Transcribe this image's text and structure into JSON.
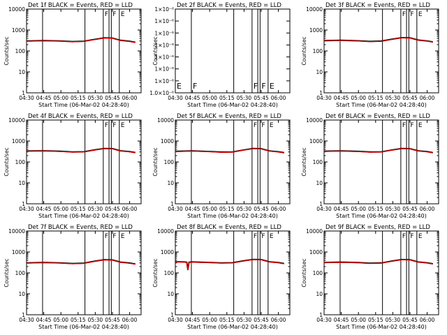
{
  "chart_data": [
    {
      "type": "line",
      "title": "Det 1f BLACK = Events, RED = LLD",
      "xlabel": "Start Time (06-Mar-02 04:28:40)",
      "ylabel": "Counts/sec",
      "yscale": "log",
      "ylim": [
        1,
        10000
      ],
      "ytick_labels": [
        "1",
        "10",
        "100",
        "1000",
        "10000"
      ],
      "xlim": [
        "04:30",
        "06:10"
      ],
      "xtick_labels": [
        "04:30",
        "04:45",
        "05:00",
        "05:15",
        "05:30",
        "05:45",
        "06:00"
      ],
      "event_lines": [
        "04:44",
        "05:21",
        "05:37",
        "05:42",
        "05:44",
        "05:51"
      ],
      "flag_labels": [
        {
          "text": "F",
          "time": "05:37"
        },
        {
          "text": "F",
          "time": "05:44"
        },
        {
          "text": "E",
          "time": "05:51"
        }
      ],
      "series": [
        {
          "color": "#000000",
          "x": [
            "04:30",
            "04:45",
            "05:00",
            "05:10",
            "05:20",
            "05:30",
            "05:38",
            "05:45",
            "05:52",
            "06:00",
            "06:05"
          ],
          "values": [
            300,
            310,
            300,
            280,
            290,
            360,
            420,
            410,
            320,
            290,
            260
          ]
        },
        {
          "color": "#ff0000",
          "x": [
            "04:30",
            "04:45",
            "05:00",
            "05:10",
            "05:20",
            "05:30",
            "05:38",
            "05:45",
            "05:52",
            "06:00",
            "06:05"
          ],
          "values": [
            290,
            300,
            292,
            272,
            283,
            350,
            410,
            400,
            312,
            282,
            252
          ]
        }
      ]
    },
    {
      "type": "line",
      "title": "Det 2f BLACK = Events, RED = LLD",
      "xlabel": "Start Time (06-Mar-02 04:28:40)",
      "ylabel": "Counts/sec",
      "yscale": "log",
      "ylim": [
        1e-06,
        1e-05
      ],
      "ytick_labels": [
        "1.0×10⁻⁶",
        "1×10⁻⁶",
        "1×10⁻⁶",
        "1×10⁻⁶",
        "1×10⁻⁶",
        "1×10⁻⁶",
        "1×10⁻⁶",
        "1×10⁻⁶"
      ],
      "xlim": [
        "04:30",
        "06:10"
      ],
      "xtick_labels": [
        "04:30",
        "04:45",
        "05:00",
        "05:15",
        "05:30",
        "05:45",
        "06:00"
      ],
      "event_lines": [
        "04:44",
        "05:21",
        "05:37",
        "05:42",
        "05:44",
        "05:51"
      ],
      "flag_labels": [
        {
          "text": "E",
          "time": "04:30"
        },
        {
          "text": "F",
          "time": "04:44"
        },
        {
          "text": "F",
          "time": "05:37"
        },
        {
          "text": "F",
          "time": "05:44"
        },
        {
          "text": "E",
          "time": "05:51"
        }
      ],
      "flag_position": "bottom",
      "series": []
    },
    {
      "type": "line",
      "title": "Det 3f BLACK = Events, RED = LLD",
      "xlabel": "Start Time (06-Mar-02 04:28:40)",
      "ylabel": "Counts/sec",
      "yscale": "log",
      "ylim": [
        1,
        10000
      ],
      "ytick_labels": [
        "1",
        "10",
        "100",
        "1000",
        "10000"
      ],
      "xlim": [
        "04:30",
        "06:10"
      ],
      "xtick_labels": [
        "04:30",
        "04:45",
        "05:00",
        "05:15",
        "05:30",
        "05:45",
        "06:00"
      ],
      "event_lines": [
        "04:44",
        "05:21",
        "05:37",
        "05:42",
        "05:44",
        "05:51"
      ],
      "flag_labels": [
        {
          "text": "F",
          "time": "05:37"
        },
        {
          "text": "F",
          "time": "05:44"
        },
        {
          "text": "E",
          "time": "05:51"
        }
      ],
      "series": [
        {
          "color": "#000000",
          "x": [
            "04:30",
            "04:45",
            "05:00",
            "05:10",
            "05:20",
            "05:30",
            "05:38",
            "05:45",
            "05:52",
            "06:00",
            "06:05"
          ],
          "values": [
            310,
            320,
            305,
            285,
            295,
            370,
            430,
            420,
            330,
            300,
            270
          ]
        },
        {
          "color": "#ff0000",
          "x": [
            "04:30",
            "04:45",
            "05:00",
            "05:10",
            "05:20",
            "05:30",
            "05:38",
            "05:45",
            "05:52",
            "06:00",
            "06:05"
          ],
          "values": [
            300,
            310,
            297,
            277,
            287,
            360,
            420,
            410,
            322,
            292,
            262
          ]
        }
      ]
    },
    {
      "type": "line",
      "title": "Det 4f BLACK = Events, RED = LLD",
      "xlabel": "Start Time (06-Mar-02 04:28:40)",
      "ylabel": "Counts/sec",
      "yscale": "log",
      "ylim": [
        1,
        10000
      ],
      "ytick_labels": [
        "1",
        "10",
        "100",
        "1000",
        "10000"
      ],
      "xlim": [
        "04:30",
        "06:10"
      ],
      "xtick_labels": [
        "04:30",
        "04:45",
        "05:00",
        "05:15",
        "05:30",
        "05:45",
        "06:00"
      ],
      "event_lines": [
        "04:44",
        "05:21",
        "05:37",
        "05:42",
        "05:44",
        "05:51"
      ],
      "flag_labels": [
        {
          "text": "F",
          "time": "05:37"
        },
        {
          "text": "F",
          "time": "05:44"
        },
        {
          "text": "E",
          "time": "05:51"
        }
      ],
      "series": [
        {
          "color": "#000000",
          "x": [
            "04:30",
            "04:45",
            "05:00",
            "05:10",
            "05:20",
            "05:30",
            "05:38",
            "05:45",
            "05:52",
            "06:00",
            "06:05"
          ],
          "values": [
            330,
            340,
            320,
            300,
            305,
            380,
            440,
            430,
            340,
            310,
            280
          ]
        },
        {
          "color": "#ff0000",
          "x": [
            "04:30",
            "04:45",
            "05:00",
            "05:10",
            "05:20",
            "05:30",
            "05:38",
            "05:45",
            "05:52",
            "06:00",
            "06:05"
          ],
          "values": [
            320,
            330,
            312,
            292,
            297,
            370,
            430,
            420,
            332,
            302,
            272
          ]
        }
      ]
    },
    {
      "type": "line",
      "title": "Det 5f BLACK = Events, RED = LLD",
      "xlabel": "Start Time (06-Mar-02 04:28:40)",
      "ylabel": "Counts/sec",
      "yscale": "log",
      "ylim": [
        1,
        10000
      ],
      "ytick_labels": [
        "1",
        "10",
        "100",
        "1000",
        "10000"
      ],
      "xlim": [
        "04:30",
        "06:10"
      ],
      "xtick_labels": [
        "04:30",
        "04:45",
        "05:00",
        "05:15",
        "05:30",
        "05:45",
        "06:00"
      ],
      "event_lines": [
        "04:44",
        "05:21",
        "05:37",
        "05:42",
        "05:44",
        "05:51"
      ],
      "flag_labels": [
        {
          "text": "F",
          "time": "05:37"
        },
        {
          "text": "F",
          "time": "05:44"
        },
        {
          "text": "E",
          "time": "05:51"
        }
      ],
      "series": [
        {
          "color": "#000000",
          "x": [
            "04:30",
            "04:45",
            "05:00",
            "05:10",
            "05:20",
            "05:30",
            "05:38",
            "05:45",
            "05:52",
            "06:00",
            "06:05"
          ],
          "values": [
            320,
            335,
            315,
            295,
            300,
            375,
            435,
            425,
            335,
            305,
            275
          ]
        },
        {
          "color": "#ff0000",
          "x": [
            "04:30",
            "04:45",
            "05:00",
            "05:10",
            "05:20",
            "05:30",
            "05:38",
            "05:45",
            "05:52",
            "06:00",
            "06:05"
          ],
          "values": [
            310,
            325,
            307,
            287,
            292,
            365,
            425,
            415,
            327,
            297,
            267
          ]
        }
      ]
    },
    {
      "type": "line",
      "title": "Det 6f BLACK = Events, RED = LLD",
      "xlabel": "Start Time (06-Mar-02 04:28:40)",
      "ylabel": "Counts/sec",
      "yscale": "log",
      "ylim": [
        1,
        10000
      ],
      "ytick_labels": [
        "1",
        "10",
        "100",
        "1000",
        "10000"
      ],
      "xlim": [
        "04:30",
        "06:10"
      ],
      "xtick_labels": [
        "04:30",
        "04:45",
        "05:00",
        "05:15",
        "05:30",
        "05:45",
        "06:00"
      ],
      "event_lines": [
        "04:44",
        "05:21",
        "05:37",
        "05:42",
        "05:44",
        "05:51"
      ],
      "flag_labels": [
        {
          "text": "F",
          "time": "05:37"
        },
        {
          "text": "F",
          "time": "05:44"
        },
        {
          "text": "E",
          "time": "05:51"
        }
      ],
      "series": [
        {
          "color": "#000000",
          "x": [
            "04:30",
            "04:45",
            "05:00",
            "05:10",
            "05:20",
            "05:30",
            "05:38",
            "05:45",
            "05:52",
            "06:00",
            "06:05"
          ],
          "values": [
            325,
            335,
            318,
            298,
            303,
            378,
            438,
            428,
            338,
            308,
            278
          ]
        },
        {
          "color": "#ff0000",
          "x": [
            "04:30",
            "04:45",
            "05:00",
            "05:10",
            "05:20",
            "05:30",
            "05:38",
            "05:45",
            "05:52",
            "06:00",
            "06:05"
          ],
          "values": [
            315,
            325,
            310,
            290,
            295,
            368,
            428,
            418,
            330,
            300,
            270
          ]
        }
      ]
    },
    {
      "type": "line",
      "title": "Det 7f BLACK = Events, RED = LLD",
      "xlabel": "Start Time (06-Mar-02 04:28:40)",
      "ylabel": "Counts/sec",
      "yscale": "log",
      "ylim": [
        1,
        10000
      ],
      "ytick_labels": [
        "1",
        "10",
        "100",
        "1000",
        "10000"
      ],
      "xlim": [
        "04:30",
        "06:10"
      ],
      "xtick_labels": [
        "04:30",
        "04:45",
        "05:00",
        "05:15",
        "05:30",
        "05:45",
        "06:00"
      ],
      "event_lines": [
        "04:44",
        "05:21",
        "05:37",
        "05:42",
        "05:44",
        "05:51"
      ],
      "flag_labels": [
        {
          "text": "F",
          "time": "05:37"
        },
        {
          "text": "F",
          "time": "05:44"
        },
        {
          "text": "E",
          "time": "05:51"
        }
      ],
      "series": [
        {
          "color": "#000000",
          "x": [
            "04:30",
            "04:45",
            "05:00",
            "05:10",
            "05:20",
            "05:30",
            "05:38",
            "05:45",
            "05:52",
            "06:00",
            "06:05"
          ],
          "values": [
            300,
            315,
            300,
            280,
            290,
            365,
            425,
            415,
            325,
            295,
            265
          ]
        },
        {
          "color": "#ff0000",
          "x": [
            "04:30",
            "04:45",
            "05:00",
            "05:10",
            "05:20",
            "05:30",
            "05:38",
            "05:45",
            "05:52",
            "06:00",
            "06:05"
          ],
          "values": [
            290,
            305,
            292,
            272,
            282,
            355,
            415,
            405,
            317,
            287,
            257
          ]
        }
      ]
    },
    {
      "type": "line",
      "title": "Det 8f BLACK = Events, RED = LLD",
      "xlabel": "Start Time (06-Mar-02 04:28:40)",
      "ylabel": "Counts/sec",
      "yscale": "log",
      "ylim": [
        1,
        10000
      ],
      "ytick_labels": [
        "1",
        "10",
        "100",
        "1000",
        "10000"
      ],
      "xlim": [
        "04:30",
        "06:10"
      ],
      "xtick_labels": [
        "04:30",
        "04:45",
        "05:00",
        "05:15",
        "05:30",
        "05:45",
        "06:00"
      ],
      "event_lines": [
        "04:44",
        "05:21",
        "05:37",
        "05:42",
        "05:44",
        "05:51"
      ],
      "flag_labels": [
        {
          "text": "F",
          "time": "05:37"
        },
        {
          "text": "F",
          "time": "05:44"
        },
        {
          "text": "E",
          "time": "05:51"
        }
      ],
      "series": [
        {
          "color": "#000000",
          "x": [
            "04:30",
            "04:38",
            "04:40",
            "04:41",
            "04:42",
            "04:45",
            "05:00",
            "05:10",
            "05:20",
            "05:30",
            "05:38",
            "05:45",
            "05:52",
            "06:00",
            "06:05"
          ],
          "values": [
            340,
            330,
            320,
            140,
            320,
            330,
            315,
            300,
            305,
            380,
            440,
            430,
            340,
            310,
            280
          ]
        },
        {
          "color": "#ff0000",
          "x": [
            "04:30",
            "04:38",
            "04:40",
            "04:41",
            "04:42",
            "04:45",
            "05:00",
            "05:10",
            "05:20",
            "05:30",
            "05:38",
            "05:45",
            "05:52",
            "06:00",
            "06:05"
          ],
          "values": [
            330,
            320,
            310,
            135,
            310,
            320,
            307,
            292,
            297,
            370,
            430,
            420,
            332,
            302,
            272
          ]
        }
      ]
    },
    {
      "type": "line",
      "title": "Det 9f BLACK = Events, RED = LLD",
      "xlabel": "Start Time (06-Mar-02 04:28:40)",
      "ylabel": "Counts/sec",
      "yscale": "log",
      "ylim": [
        1,
        10000
      ],
      "ytick_labels": [
        "1",
        "10",
        "100",
        "1000",
        "10000"
      ],
      "xlim": [
        "04:30",
        "06:10"
      ],
      "xtick_labels": [
        "04:30",
        "04:45",
        "05:00",
        "05:15",
        "05:30",
        "05:45",
        "06:00"
      ],
      "event_lines": [
        "04:44",
        "05:21",
        "05:37",
        "05:42",
        "05:44",
        "05:51"
      ],
      "flag_labels": [
        {
          "text": "F",
          "time": "05:37"
        },
        {
          "text": "F",
          "time": "05:44"
        },
        {
          "text": "E",
          "time": "05:51"
        }
      ],
      "series": [
        {
          "color": "#000000",
          "x": [
            "04:30",
            "04:45",
            "05:00",
            "05:10",
            "05:20",
            "05:30",
            "05:38",
            "05:45",
            "05:52",
            "06:00",
            "06:05"
          ],
          "values": [
            315,
            325,
            310,
            290,
            298,
            372,
            432,
            422,
            332,
            302,
            272
          ]
        },
        {
          "color": "#ff0000",
          "x": [
            "04:30",
            "04:45",
            "05:00",
            "05:10",
            "05:20",
            "05:30",
            "05:38",
            "05:45",
            "05:52",
            "06:00",
            "06:05"
          ],
          "values": [
            305,
            315,
            302,
            282,
            290,
            362,
            422,
            412,
            324,
            294,
            264
          ]
        }
      ]
    }
  ]
}
